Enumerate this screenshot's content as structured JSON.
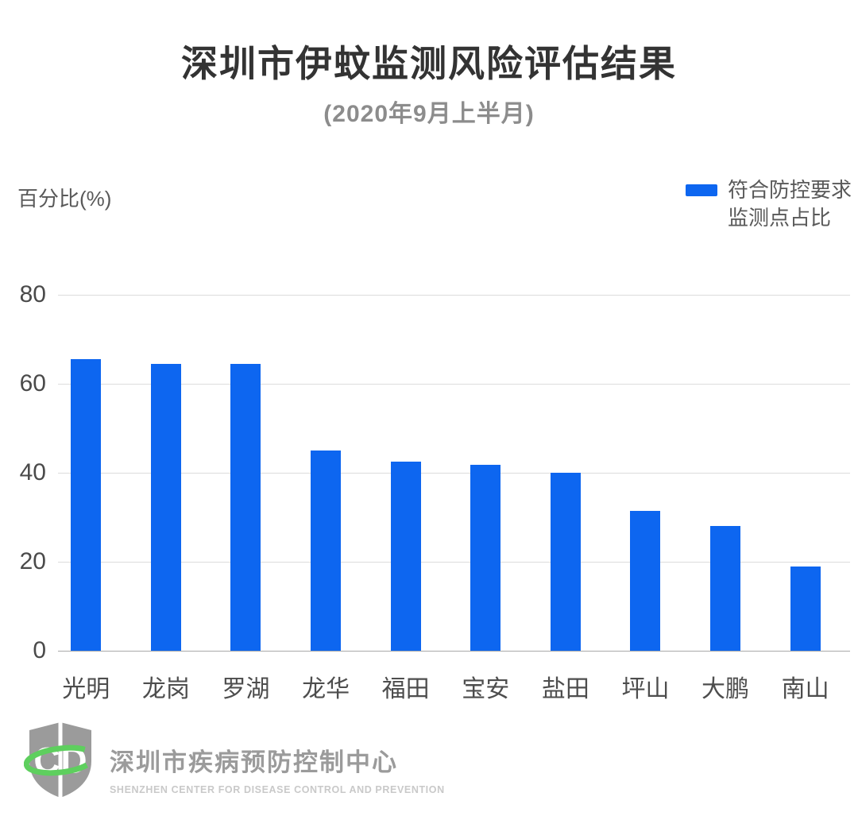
{
  "chart_data": {
    "type": "bar",
    "title": "深圳市伊蚊监测风险评估结果",
    "subtitle": "(2020年9月上半月)",
    "ylabel": "百分比(%)",
    "xlabel": "",
    "categories": [
      "光明",
      "龙岗",
      "罗湖",
      "龙华",
      "福田",
      "宝安",
      "盐田",
      "坪山",
      "大鹏",
      "南山"
    ],
    "values": [
      65.5,
      64.5,
      64.5,
      45,
      42.5,
      41.8,
      40,
      31.5,
      28,
      19
    ],
    "ylim": [
      0,
      80
    ],
    "yticks": [
      0,
      20,
      40,
      60,
      80
    ],
    "grid": true,
    "bar_color": "#0d66f0",
    "legend": {
      "position": "top-right",
      "label_lines": [
        "符合防控要求",
        "监测点占比"
      ]
    }
  },
  "footer": {
    "org_cn": "深圳市疾病预防控制中心",
    "org_en": "SHENZHEN CENTER FOR DISEASE CONTROL AND PREVENTION"
  },
  "colors": {
    "bar": "#0d66f0",
    "title": "#333333",
    "subtitle": "#8c8c8c",
    "axis_text": "#4a4a4a",
    "gridline": "#dcdcdc",
    "baseline": "#a8a8a8",
    "logo_gray": "#9b9b9b",
    "logo_green": "#5ecf5e"
  }
}
